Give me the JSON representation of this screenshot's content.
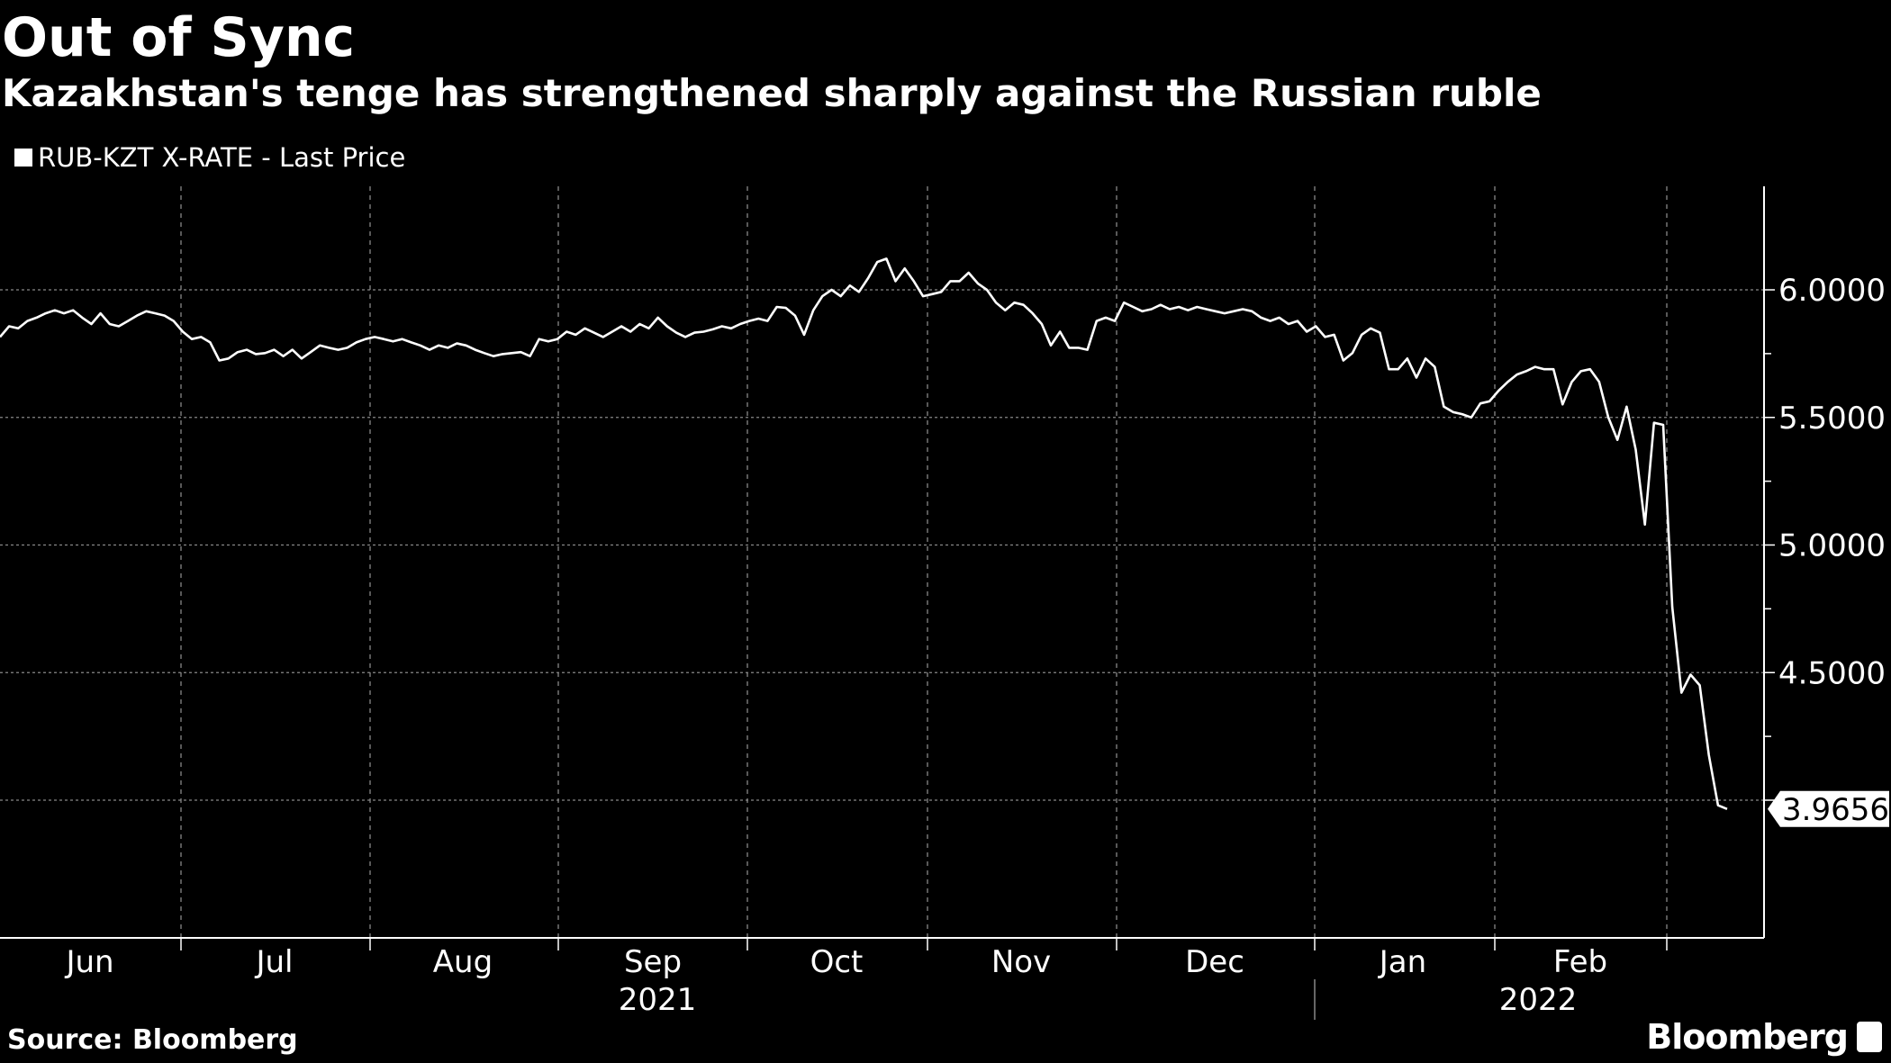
{
  "chart_data": {
    "type": "line",
    "title": "Out of Sync",
    "subtitle": "Kazakhstan's tenge has strengthened sharply against the Russian ruble",
    "legend": [
      "RUB-KZT X-RATE - Last Price"
    ],
    "legend_placement": "top-left",
    "xlabel": "",
    "ylabel": "",
    "x_range": [
      "2021-05-28",
      "2022-03-09"
    ],
    "x_ticks": [
      "Jun",
      "Jul",
      "Aug",
      "Sep",
      "Oct",
      "Nov",
      "Dec",
      "Jan",
      "Feb"
    ],
    "years": [
      "2021",
      "2022"
    ],
    "y_ticks": [
      "6.0000",
      "5.5000",
      "5.0000",
      "4.5000"
    ],
    "y_tick_values": [
      6.0,
      5.5,
      5.0,
      4.5,
      4.0
    ],
    "ylim": [
      3.8,
      6.35
    ],
    "grid": true,
    "last_value_label": "3.9656",
    "series": [
      {
        "name": "RUB-KZT X-RATE - Last Price",
        "color": "#ffffff",
        "values": [
          5.815,
          5.857,
          5.849,
          5.878,
          5.891,
          5.908,
          5.92,
          5.908,
          5.92,
          5.891,
          5.866,
          5.908,
          5.866,
          5.857,
          5.878,
          5.899,
          5.916,
          5.908,
          5.899,
          5.878,
          5.836,
          5.807,
          5.815,
          5.794,
          5.723,
          5.731,
          5.756,
          5.765,
          5.748,
          5.752,
          5.765,
          5.74,
          5.765,
          5.731,
          5.756,
          5.782,
          5.773,
          5.765,
          5.773,
          5.794,
          5.807,
          5.815,
          5.807,
          5.798,
          5.807,
          5.794,
          5.782,
          5.765,
          5.782,
          5.773,
          5.79,
          5.782,
          5.765,
          5.752,
          5.74,
          5.748,
          5.752,
          5.756,
          5.74,
          5.807,
          5.798,
          5.807,
          5.836,
          5.824,
          5.849,
          5.832,
          5.815,
          5.836,
          5.857,
          5.836,
          5.866,
          5.849,
          5.891,
          5.857,
          5.832,
          5.815,
          5.832,
          5.836,
          5.845,
          5.857,
          5.849,
          5.866,
          5.878,
          5.887,
          5.878,
          5.933,
          5.929,
          5.899,
          5.824,
          5.92,
          5.975,
          6.0,
          5.975,
          6.017,
          5.992,
          6.046,
          6.109,
          6.122,
          6.034,
          6.084,
          6.034,
          5.975,
          5.983,
          5.992,
          6.034,
          6.034,
          6.067,
          6.025,
          6.0,
          5.95,
          5.92,
          5.95,
          5.941,
          5.908,
          5.866,
          5.782,
          5.836,
          5.773,
          5.773,
          5.765,
          5.878,
          5.891,
          5.878,
          5.95,
          5.933,
          5.916,
          5.924,
          5.941,
          5.924,
          5.933,
          5.92,
          5.933,
          5.924,
          5.916,
          5.908,
          5.916,
          5.924,
          5.916,
          5.891,
          5.878,
          5.891,
          5.866,
          5.878,
          5.836,
          5.857,
          5.815,
          5.824,
          5.723,
          5.752,
          5.824,
          5.849,
          5.832,
          5.689,
          5.689,
          5.731,
          5.656,
          5.731,
          5.698,
          5.542,
          5.521,
          5.513,
          5.5,
          5.555,
          5.563,
          5.605,
          5.639,
          5.668,
          5.681,
          5.698,
          5.689,
          5.689,
          5.551,
          5.639,
          5.681,
          5.689,
          5.639,
          5.5,
          5.412,
          5.542,
          5.374,
          5.08,
          5.479,
          5.471,
          4.757,
          4.421,
          4.492,
          4.45,
          4.177,
          3.98,
          3.9656
        ]
      }
    ]
  },
  "footer": {
    "source": "Source: Bloomberg",
    "brand": "Bloomberg"
  }
}
